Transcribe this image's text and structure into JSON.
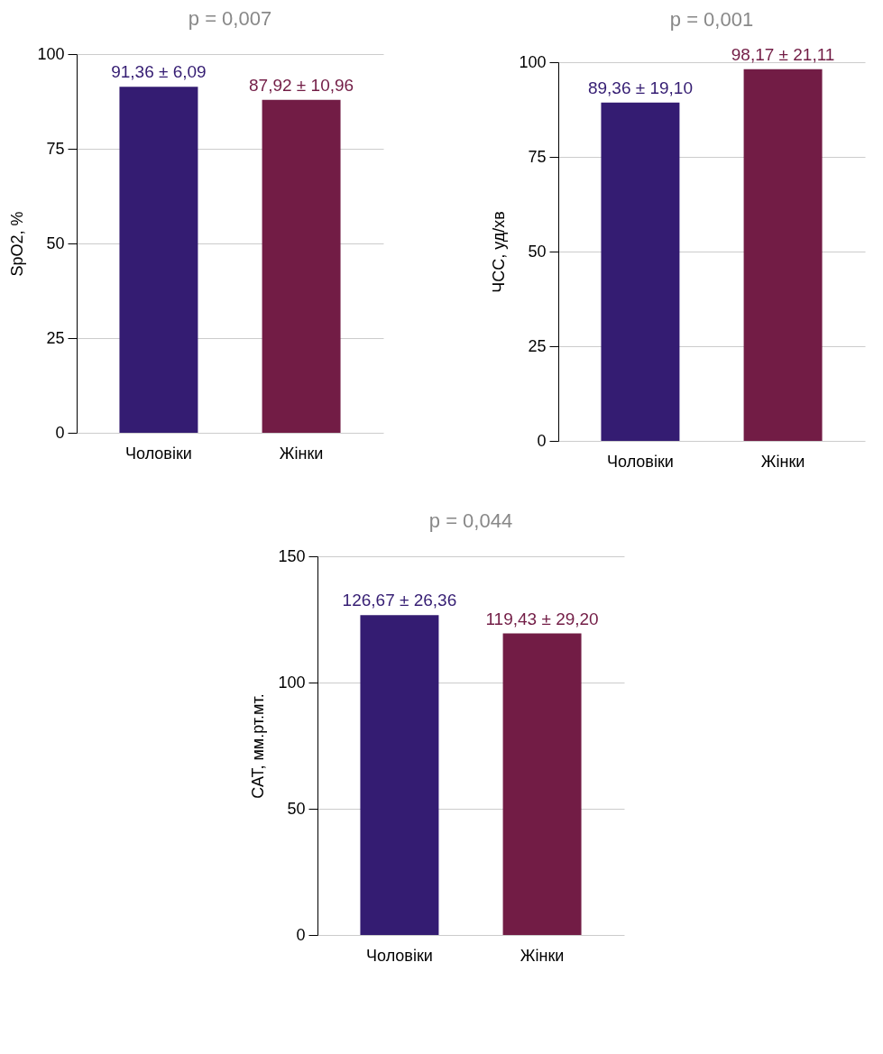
{
  "chart_data": [
    {
      "type": "bar",
      "title": "p = 0,007",
      "ylabel": "SpO2, %",
      "categories": [
        "Чоловіки",
        "Жінки"
      ],
      "values": [
        91.36,
        87.92
      ],
      "colors": [
        "#341c72",
        "#721c45"
      ],
      "value_labels": [
        "91,36 ± 6,09",
        "87,92 ± 10,96"
      ],
      "ylim": [
        0,
        100
      ],
      "yticks": [
        0,
        25,
        50,
        75,
        100
      ],
      "grid": "y"
    },
    {
      "type": "bar",
      "title": "p = 0,001",
      "ylabel": "ЧСС, уд/хв",
      "categories": [
        "Чоловіки",
        "Жінки"
      ],
      "values": [
        89.36,
        98.17
      ],
      "colors": [
        "#341c72",
        "#721c45"
      ],
      "value_labels": [
        "89,36 ± 19,10",
        "98,17 ± 21,11"
      ],
      "ylim": [
        0,
        100
      ],
      "yticks": [
        0,
        25,
        50,
        75,
        100
      ],
      "grid": "y"
    },
    {
      "type": "bar",
      "title": "p = 0,044",
      "ylabel": "САТ, мм.рт.мт.",
      "categories": [
        "Чоловіки",
        "Жінки"
      ],
      "values": [
        126.67,
        119.43
      ],
      "colors": [
        "#341c72",
        "#721c45"
      ],
      "value_labels": [
        "126,67 ± 26,36",
        "119,43 ± 29,20"
      ],
      "ylim": [
        0,
        150
      ],
      "yticks": [
        0,
        50,
        100,
        150
      ],
      "grid": "y"
    }
  ]
}
